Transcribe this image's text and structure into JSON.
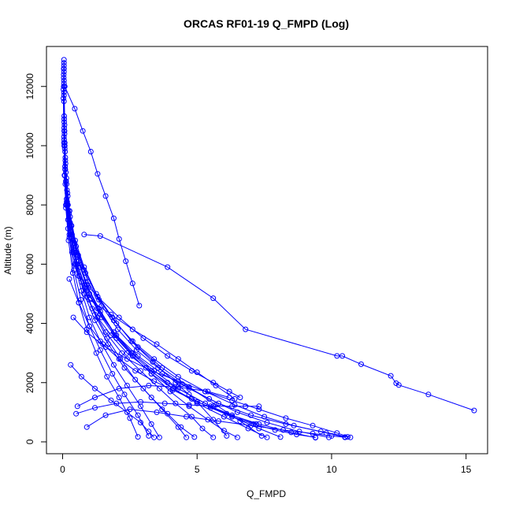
{
  "chart_data": {
    "type": "line",
    "title": "ORCAS RF01-19 Q_FMPD (Log)",
    "xlabel": "Q_FMPD",
    "ylabel": "Altitude (m)",
    "xlim": [
      -0.6,
      15.8
    ],
    "ylim": [
      -400,
      13350
    ],
    "xticks": [
      0,
      5,
      10,
      15
    ],
    "yticks": [
      0,
      2000,
      4000,
      6000,
      8000,
      10000,
      12000
    ],
    "xtick_labels": [
      "0",
      "5",
      "10",
      "15"
    ],
    "ytick_labels": [
      "0",
      "2000",
      "4000",
      "6000",
      "8000",
      "10000",
      "12000"
    ],
    "grid": false,
    "color": "#0000ff",
    "series": [
      {
        "x": [
          0.05,
          0.05,
          0.06,
          0.08,
          0.12,
          0.2,
          0.35,
          0.6,
          0.9,
          1.3,
          1.8,
          2.4,
          3.1,
          3.9,
          4.7,
          5.5,
          6.3,
          7.2
        ],
        "y": [
          12900,
          11500,
          10000,
          9000,
          8000,
          7200,
          6400,
          5600,
          4900,
          4200,
          3600,
          3000,
          2500,
          2000,
          1600,
          1200,
          900,
          600
        ]
      },
      {
        "x": [
          0.05,
          0.07,
          0.1,
          0.18,
          0.3,
          0.55,
          0.9,
          1.4,
          2.0,
          2.8,
          3.7,
          4.7,
          5.8,
          7.0,
          8.3,
          9.6,
          10.6
        ],
        "y": [
          12600,
          10500,
          9200,
          8000,
          7000,
          6000,
          5100,
          4300,
          3600,
          2900,
          2300,
          1800,
          1300,
          900,
          600,
          350,
          170
        ]
      },
      {
        "x": [
          0.05,
          0.06,
          0.09,
          0.15,
          0.28,
          0.5,
          0.8,
          1.2,
          1.7,
          2.3,
          3.0,
          3.7,
          4.3,
          4.6
        ],
        "y": [
          12200,
          10800,
          9300,
          8200,
          7100,
          6000,
          5000,
          4100,
          3300,
          2500,
          1800,
          1100,
          500,
          150
        ]
      },
      {
        "x": [
          0.04,
          0.06,
          0.1,
          0.2,
          0.4,
          0.7,
          1.1,
          1.6,
          2.2,
          2.9,
          3.6,
          4.2,
          4.8,
          5.2,
          5.6
        ],
        "y": [
          12000,
          10200,
          8700,
          7500,
          6400,
          5400,
          4500,
          3700,
          3000,
          2400,
          1800,
          1300,
          850,
          450,
          150
        ]
      },
      {
        "x": [
          0.05,
          0.08,
          0.12,
          0.22,
          0.4,
          0.65,
          1.0,
          1.45,
          2.0,
          2.6,
          3.3,
          4.1,
          5.0,
          6.1,
          7.3,
          8.5,
          9.4
        ],
        "y": [
          11800,
          9900,
          8800,
          7800,
          6800,
          5900,
          5000,
          4200,
          3500,
          2900,
          2300,
          1800,
          1350,
          950,
          600,
          320,
          140
        ]
      },
      {
        "x": [
          0.03,
          0.05,
          0.08,
          0.14,
          0.25,
          0.45,
          0.7,
          1.0,
          1.4,
          1.9,
          2.4,
          2.9,
          3.3,
          3.6
        ],
        "y": [
          11600,
          10100,
          9000,
          8000,
          7000,
          6000,
          5100,
          4200,
          3400,
          2600,
          1900,
          1200,
          600,
          150
        ]
      },
      {
        "x": [
          0.05,
          0.06,
          0.1,
          0.16,
          0.28,
          0.5,
          0.85,
          1.3,
          1.9,
          2.6,
          3.4,
          4.3,
          5.3,
          6.3,
          7.3,
          8.1
        ],
        "y": [
          12700,
          11000,
          9600,
          8500,
          7400,
          6400,
          5400,
          4500,
          3700,
          3000,
          2400,
          1800,
          1300,
          850,
          450,
          160
        ]
      },
      {
        "x": [
          0.04,
          0.07,
          0.12,
          0.2,
          0.35,
          0.6,
          0.95,
          1.4,
          1.95,
          2.6,
          3.3,
          4.0,
          4.7,
          5.4,
          6.0,
          6.5
        ],
        "y": [
          12300,
          10400,
          9100,
          8000,
          7000,
          6100,
          5200,
          4400,
          3600,
          2900,
          2300,
          1700,
          1200,
          750,
          380,
          150
        ]
      },
      {
        "x": [
          0.05,
          0.06,
          0.09,
          0.15,
          0.25,
          0.42,
          0.68,
          1.0,
          1.4,
          1.85,
          2.3,
          2.8,
          3.2
        ],
        "y": [
          12500,
          10600,
          9300,
          8100,
          6900,
          5800,
          4800,
          3900,
          3100,
          2300,
          1600,
          900,
          200
        ]
      },
      {
        "x": [
          0.05,
          0.08,
          0.13,
          0.24,
          0.45,
          0.8,
          1.3,
          1.9,
          2.6,
          3.4,
          4.3,
          5.3,
          6.4,
          7.5,
          8.6,
          9.8,
          10.5
        ],
        "y": [
          12100,
          10000,
          8800,
          7700,
          6700,
          5800,
          4900,
          4100,
          3400,
          2800,
          2200,
          1700,
          1250,
          850,
          550,
          300,
          160
        ]
      },
      {
        "x": [
          0.03,
          0.05,
          0.07,
          0.12,
          0.22,
          0.38,
          0.6,
          0.9,
          1.25,
          1.65,
          2.1,
          2.5,
          2.8
        ],
        "y": [
          11900,
          10300,
          9000,
          7900,
          6800,
          5700,
          4700,
          3800,
          3000,
          2200,
          1500,
          800,
          170
        ]
      },
      {
        "x": [
          0.05,
          0.07,
          0.11,
          0.19,
          0.33,
          0.58,
          0.95,
          1.45,
          2.05,
          2.75,
          3.55,
          4.45,
          5.45,
          6.5,
          7.6,
          8.8,
          9.9
        ],
        "y": [
          12800,
          10700,
          9400,
          8300,
          7300,
          6300,
          5400,
          4600,
          3800,
          3100,
          2500,
          1950,
          1450,
          1000,
          650,
          350,
          150
        ]
      },
      {
        "x": [
          0.04,
          0.06,
          0.09,
          0.17,
          0.3,
          0.52,
          0.82,
          1.2,
          1.65,
          2.15,
          2.7,
          3.3,
          3.9,
          4.4,
          4.9
        ],
        "y": [
          12400,
          10500,
          9200,
          8100,
          7100,
          6100,
          5200,
          4300,
          3500,
          2800,
          2100,
          1500,
          950,
          500,
          160
        ]
      },
      {
        "x": [
          0.05,
          0.09,
          0.15,
          0.28,
          0.5,
          0.85,
          1.35,
          2.0,
          2.8,
          3.7,
          4.7,
          5.7,
          6.6,
          7.4
        ],
        "y": [
          11700,
          9800,
          8700,
          7600,
          6600,
          5700,
          4800,
          4000,
          3200,
          2500,
          1850,
          1250,
          700,
          200
        ]
      },
      {
        "x": [
          0.04,
          0.06,
          0.1,
          0.18,
          0.32,
          0.55,
          0.9,
          1.35,
          1.9,
          2.55,
          3.3,
          4.1,
          5.0,
          6.0,
          6.9,
          7.6
        ],
        "y": [
          12600,
          10900,
          9500,
          8400,
          7300,
          6300,
          5300,
          4500,
          3700,
          3000,
          2400,
          1800,
          1300,
          850,
          450,
          150
        ]
      },
      {
        "x": [
          0.05,
          0.08,
          0.14,
          0.26,
          0.47,
          0.8,
          1.25,
          1.85,
          2.55,
          3.35,
          4.2,
          5.0,
          5.6,
          6.1
        ],
        "y": [
          12000,
          10100,
          8900,
          7800,
          6800,
          5900,
          5000,
          4200,
          3400,
          2700,
          2000,
          1350,
          750,
          200
        ]
      },
      {
        "x": [
          0.08,
          0.45,
          0.75,
          1.05,
          1.3,
          1.6,
          1.9,
          2.1,
          2.35,
          2.6,
          2.85
        ],
        "y": [
          12000,
          11250,
          10500,
          9800,
          9050,
          8300,
          7550,
          6850,
          6100,
          5350,
          4600
        ]
      },
      {
        "x": [
          0.8,
          1.4,
          3.9,
          5.6,
          6.8,
          10.2,
          10.4,
          11.1,
          12.2,
          12.4,
          12.5,
          13.6,
          15.3
        ],
        "y": [
          7000,
          6950,
          5900,
          4850,
          3800,
          2900,
          2900,
          2620,
          2230,
          1980,
          1920,
          1600,
          1060
        ]
      },
      {
        "x": [
          0.9,
          1.6,
          2.5,
          3.5,
          4.6,
          5.8,
          7.0,
          8.2,
          9.3,
          10.0,
          10.5
        ],
        "y": [
          500,
          900,
          1100,
          1000,
          850,
          700,
          550,
          400,
          280,
          200,
          150
        ]
      },
      {
        "x": [
          0.5,
          1.2,
          2.0,
          2.9,
          3.8,
          4.7,
          5.6,
          6.3,
          6.8,
          7.3
        ],
        "y": [
          950,
          1150,
          1300,
          1350,
          1300,
          1250,
          1200,
          1200,
          1200,
          1200
        ]
      },
      {
        "x": [
          0.55,
          1.2,
          2.1,
          3.2,
          4.3,
          5.4,
          6.2
        ],
        "y": [
          1200,
          1500,
          1800,
          1900,
          1850,
          1700,
          1500
        ]
      },
      {
        "x": [
          0.3,
          0.7,
          1.2,
          1.8,
          2.4,
          2.9,
          3.2,
          3.4
        ],
        "y": [
          2600,
          2200,
          1800,
          1400,
          1000,
          650,
          350,
          150
        ]
      },
      {
        "x": [
          0.25,
          0.6,
          1.0,
          1.5,
          2.1,
          2.7,
          3.4,
          4.1,
          4.8,
          5.5,
          6.3,
          7.1,
          7.9,
          8.7,
          9.4
        ],
        "y": [
          5500,
          4700,
          3900,
          3300,
          2800,
          2400,
          2050,
          1750,
          1450,
          1150,
          850,
          600,
          400,
          250,
          150
        ]
      },
      {
        "x": [
          0.4,
          0.9,
          1.6,
          2.4,
          3.3,
          4.3,
          5.3,
          6.3,
          7.3,
          8.3,
          9.3,
          10.2,
          10.7
        ],
        "y": [
          4200,
          3700,
          3200,
          2800,
          2400,
          2050,
          1700,
          1400,
          1100,
          800,
          550,
          300,
          150
        ]
      },
      {
        "x": [
          1.0,
          1.8,
          2.6,
          3.5,
          4.3,
          5.0,
          5.7,
          6.4
        ],
        "y": [
          4800,
          4300,
          3800,
          3300,
          2800,
          2350,
          1900,
          1450
        ]
      },
      {
        "x": [
          0.6,
          1.3,
          2.1,
          3.0,
          3.9,
          4.8,
          5.6,
          6.2,
          6.6
        ],
        "y": [
          5600,
          4900,
          4200,
          3500,
          2900,
          2400,
          2000,
          1700,
          1500
        ]
      }
    ]
  }
}
